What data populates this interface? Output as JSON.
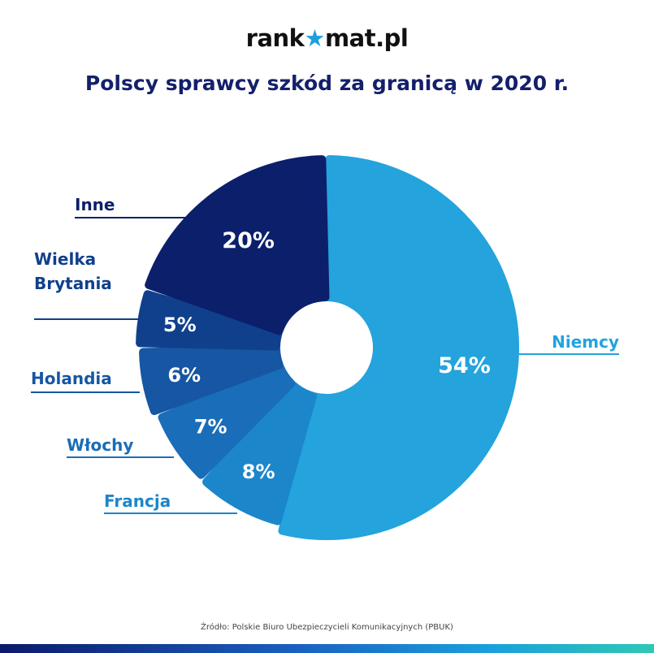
{
  "logo": {
    "prefix": "rank",
    "star": "★",
    "suffix": "mat.pl"
  },
  "title": "Polscy sprawcy szkód za granicą w 2020 r.",
  "source": "Źródło: Polskie Biuro Ubezpieczycieli Komunikacyjnych (PBUK)",
  "colors": {
    "Niemcy": "#24a3dd",
    "Francja": "#1c86cb",
    "Włochy": "#1a6db8",
    "Holandia": "#1656a3",
    "Wielka Brytania": "#10408c",
    "Inne": "#0b1f6b"
  },
  "chart_data": {
    "type": "pie",
    "subtype": "donut",
    "title": "Polscy sprawcy szkód za granicą w 2020 r.",
    "categories": [
      "Niemcy",
      "Francja",
      "Włochy",
      "Holandia",
      "Wielka Brytania",
      "Inne"
    ],
    "values": [
      54,
      8,
      7,
      6,
      5,
      20
    ],
    "value_labels": [
      "54%",
      "8%",
      "7%",
      "6%",
      "5%",
      "20%"
    ],
    "label_lines": [
      [
        "Niemcy"
      ],
      [
        "Francja"
      ],
      [
        "Włochy"
      ],
      [
        "Holandia"
      ],
      [
        "Wielka",
        "Brytania"
      ],
      [
        "Inne"
      ]
    ],
    "units": "%"
  }
}
